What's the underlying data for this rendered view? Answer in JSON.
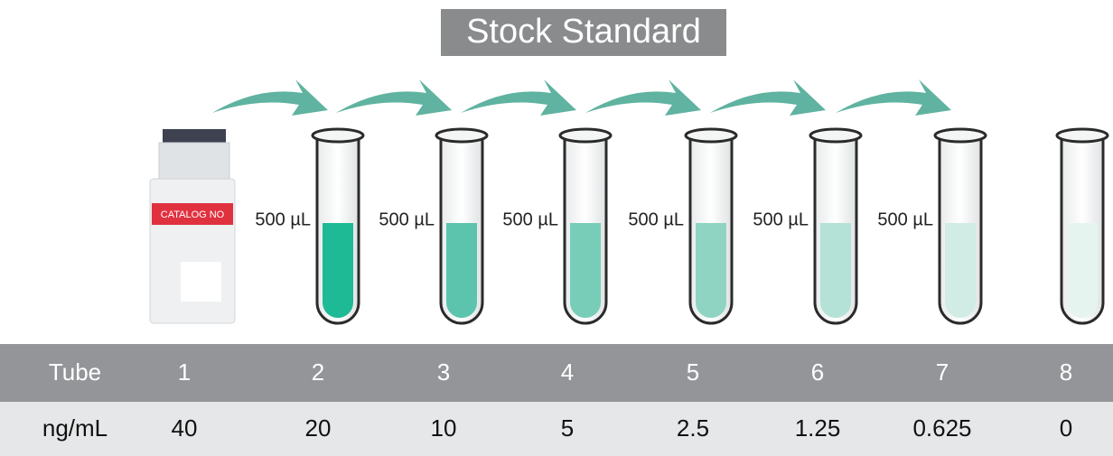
{
  "title": "Stock Standard",
  "vial_label": "CATALOG NO",
  "volumes": [
    "500 µL",
    "500 µL",
    "500 µL",
    "500 µL",
    "500 µL",
    "500 µL"
  ],
  "table": {
    "header": [
      "Tube",
      "1",
      "2",
      "3",
      "4",
      "5",
      "6",
      "7",
      "8"
    ],
    "rows": [
      [
        "ng/mL",
        "40",
        "20",
        "10",
        "5",
        "2.5",
        "1.25",
        "0.625",
        "0"
      ]
    ]
  }
}
